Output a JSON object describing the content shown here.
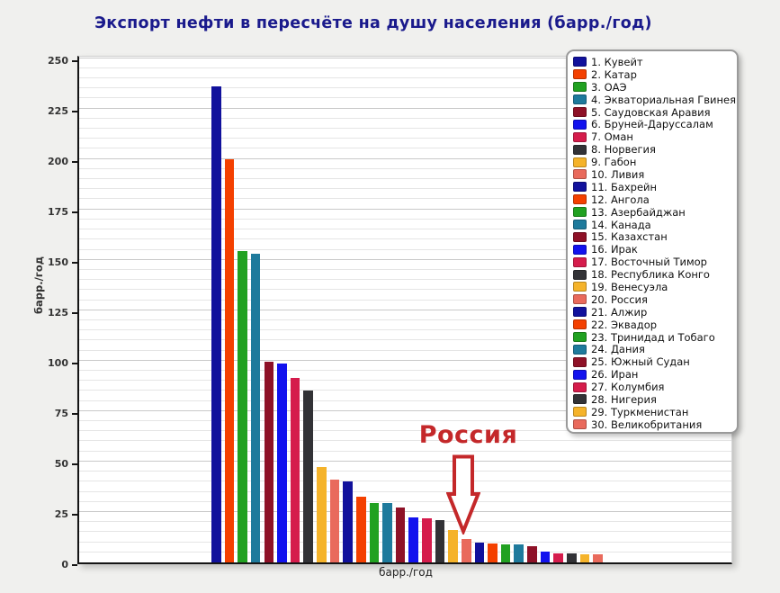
{
  "page": {
    "background_color": "#F0F0EE"
  },
  "chart_data": {
    "type": "bar",
    "title": "Экспорт нефти в пересчёте на душу населения (барр./год)",
    "title_color": "#1A1A8C",
    "ylabel": "барр./год",
    "xlabel": "барр./год",
    "ylim": [
      0,
      250
    ],
    "ytick_step": 25,
    "minor_grid_step": 5,
    "grid": "on",
    "legend_position": "top-right",
    "categories": [
      "Кувейт",
      "Катар",
      "ОАЭ",
      "Экваториальная Гвинея",
      "Саудовская Аравия",
      "Бруней-Даруссалам",
      "Оман",
      "Норвегия",
      "Габон",
      "Ливия",
      "Бахрейн",
      "Ангола",
      "Азербайджан",
      "Канада",
      "Казахстан",
      "Ирак",
      "Восточный Тимор",
      "Республика Конго",
      "Венесуэла",
      "Россия",
      "Алжир",
      "Эквадор",
      "Тринидад и Тобаго",
      "Дания",
      "Южный Судан",
      "Иран",
      "Колумбия",
      "Нигерия",
      "Туркменистан",
      "Великобритания"
    ],
    "values": [
      236,
      200,
      154.5,
      153,
      99.5,
      98.5,
      91.5,
      85,
      47.5,
      41,
      40,
      32.5,
      29.5,
      29.4,
      27,
      22.5,
      22,
      21,
      16,
      11.5,
      10,
      9.2,
      9,
      8.8,
      8.2,
      5.5,
      4.5,
      4.4,
      4.2,
      4.1
    ],
    "palette": [
      "#11119C",
      "#F44000",
      "#21A121",
      "#1E7A9C",
      "#8E1127",
      "#1212EE",
      "#D51C4C",
      "#323236",
      "#F5B32A",
      "#E96A5C"
    ],
    "annotation": {
      "text": "Россия",
      "target_category": "Россия",
      "color": "#C4282A"
    }
  },
  "legend": {
    "items": [
      {
        "label": "1. Кувейт"
      },
      {
        "label": "2. Катар"
      },
      {
        "label": "3. ОАЭ"
      },
      {
        "label": "4. Экваториальная Гвинея"
      },
      {
        "label": "5. Саудовская Аравия"
      },
      {
        "label": "6. Бруней-Даруссалам"
      },
      {
        "label": "7. Оман"
      },
      {
        "label": "8. Норвегия"
      },
      {
        "label": "9. Габон"
      },
      {
        "label": "10. Ливия"
      },
      {
        "label": "11. Бахрейн"
      },
      {
        "label": "12. Ангола"
      },
      {
        "label": "13. Азербайджан"
      },
      {
        "label": "14. Канада"
      },
      {
        "label": "15. Казахстан"
      },
      {
        "label": "16. Ирак"
      },
      {
        "label": "17. Восточный Тимор"
      },
      {
        "label": "18. Республика Конго"
      },
      {
        "label": "19. Венесуэла"
      },
      {
        "label": "20. Россия"
      },
      {
        "label": "21. Алжир"
      },
      {
        "label": "22. Эквадор"
      },
      {
        "label": "23. Тринидад и Тобаго"
      },
      {
        "label": "24. Дания"
      },
      {
        "label": "25. Южный Судан"
      },
      {
        "label": "26. Иран"
      },
      {
        "label": "27. Колумбия"
      },
      {
        "label": "28. Нигерия"
      },
      {
        "label": "29. Туркменистан"
      },
      {
        "label": "30. Великобритания"
      }
    ]
  }
}
